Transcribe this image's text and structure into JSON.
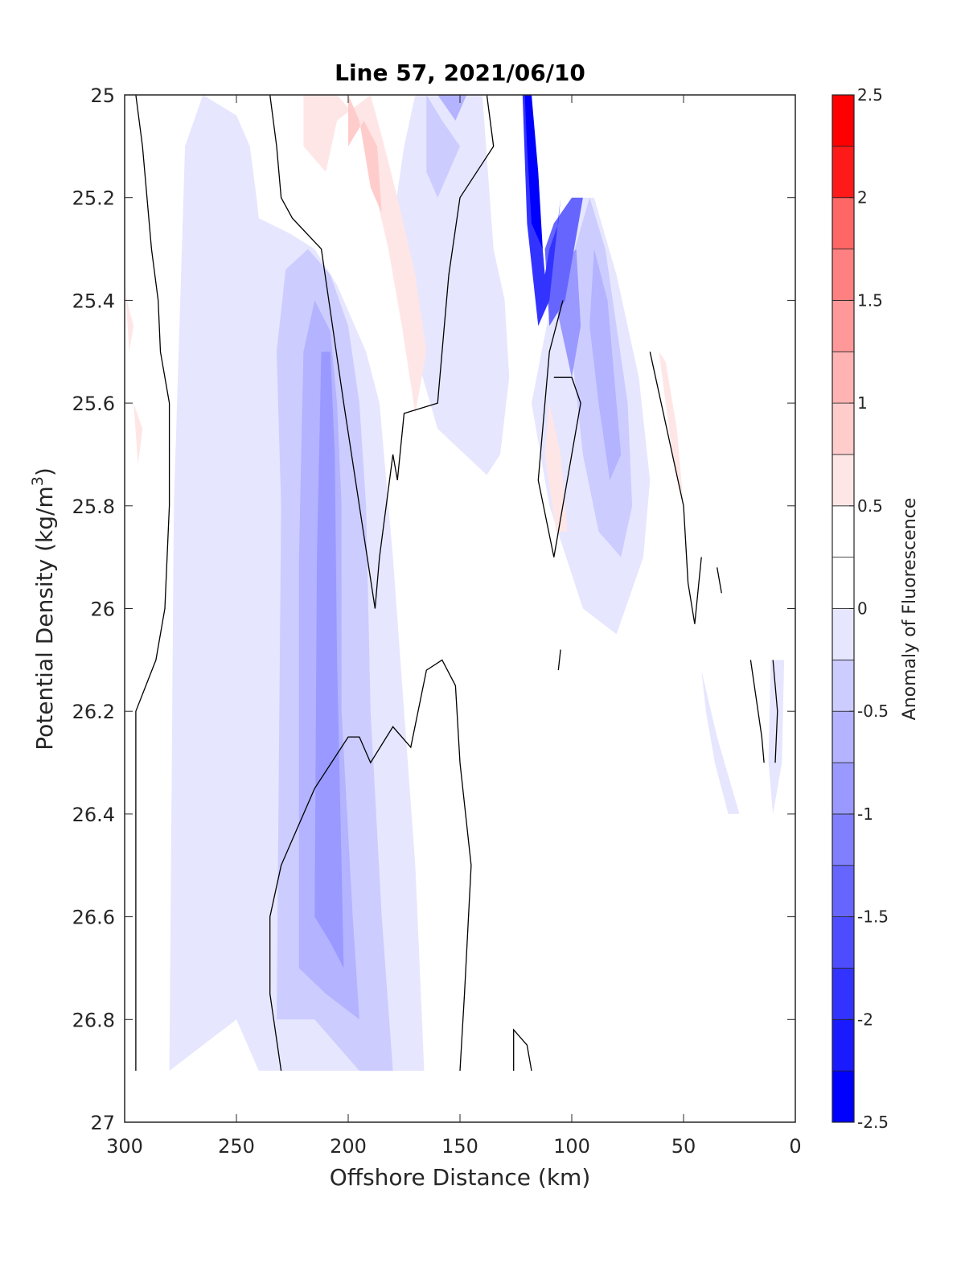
{
  "chart_data": {
    "type": "filled-contour",
    "title": "Line 57, 2021/06/10",
    "xlabel": "Offshore Distance (km)",
    "ylabel_main": "Potential Density (kg/m",
    "ylabel_sup": "3",
    "ylabel_tail": ")",
    "xlim": [
      300,
      0
    ],
    "ylim": [
      27,
      25
    ],
    "x_reversed": true,
    "y_reversed": true,
    "x_ticks": [
      300,
      250,
      200,
      150,
      100,
      50,
      0
    ],
    "x_tick_labels": [
      "300",
      "250",
      "200",
      "150",
      "100",
      "50",
      "0"
    ],
    "y_ticks": [
      25,
      25.2,
      25.4,
      25.6,
      25.8,
      26,
      26.2,
      26.4,
      26.6,
      26.8,
      27
    ],
    "y_tick_labels": [
      "25",
      "25.2",
      "25.4",
      "25.6",
      "25.8",
      "26",
      "26.2",
      "26.4",
      "26.6",
      "26.8",
      "27"
    ],
    "colorbar": {
      "label": "Anomaly of Fluorescence",
      "range": [
        -2.5,
        2.5
      ],
      "ticks": [
        -2.5,
        -2,
        -1.5,
        -1,
        -0.5,
        0,
        0.5,
        1,
        1.5,
        2,
        2.5
      ],
      "tick_labels": [
        "-2.5",
        "-2",
        "-1.5",
        "-1",
        "-0.5",
        "0",
        "0.5",
        "1",
        "1.5",
        "2",
        "2.5"
      ],
      "levels": [
        -2.5,
        -2.25,
        -2,
        -1.75,
        -1.5,
        -1.25,
        -1,
        -0.75,
        -0.5,
        -0.25,
        0.25,
        0.5,
        0.75,
        1,
        1.25,
        1.5,
        1.75,
        2,
        2.25,
        2.5
      ],
      "colors": [
        "#0000ff",
        "#1a1aff",
        "#3333ff",
        "#4d4dff",
        "#6666ff",
        "#8080ff",
        "#9999ff",
        "#b3b3ff",
        "#ccccff",
        "#e6e6ff",
        "#ffffff",
        "#ffe6e6",
        "#ffcccc",
        "#ffb3b3",
        "#ff9999",
        "#ff8080",
        "#ff6666",
        "#ff4d4d",
        "#ff3333",
        "#ff1a1a",
        "#ff0000"
      ]
    },
    "filled_regions": [
      {
        "level": -0.25,
        "color": "#e6e6ff",
        "polygon": [
          [
            280,
            26.9
          ],
          [
            278,
            25.8
          ],
          [
            273,
            25.1
          ],
          [
            265,
            25.0
          ],
          [
            250,
            25.04
          ],
          [
            244,
            25.1
          ],
          [
            241,
            25.2
          ],
          [
            240,
            25.24
          ],
          [
            226,
            25.27
          ],
          [
            215,
            25.3
          ],
          [
            205,
            25.37
          ],
          [
            197,
            25.45
          ],
          [
            192,
            25.5
          ],
          [
            186,
            25.6
          ],
          [
            180,
            25.9
          ],
          [
            175,
            26.2
          ],
          [
            170,
            26.5
          ],
          [
            166,
            26.9
          ],
          [
            240,
            26.9
          ],
          [
            250,
            26.8
          ]
        ]
      },
      {
        "level": -0.25,
        "color": "#e6e6ff",
        "polygon": [
          [
            130,
            25.0
          ],
          [
            140,
            25.0
          ],
          [
            135,
            25.3
          ],
          [
            130,
            25.4
          ],
          [
            128,
            25.55
          ],
          [
            132,
            25.7
          ],
          [
            138,
            25.74
          ],
          [
            160,
            25.65
          ],
          [
            170,
            25.5
          ],
          [
            180,
            25.25
          ],
          [
            175,
            25.1
          ],
          [
            170,
            25.0
          ]
        ]
      },
      {
        "level": -0.25,
        "color": "#e6e6ff",
        "polygon": [
          [
            100,
            25.2
          ],
          [
            90,
            25.2
          ],
          [
            80,
            25.35
          ],
          [
            70,
            25.55
          ],
          [
            65,
            25.75
          ],
          [
            68,
            25.9
          ],
          [
            80,
            26.05
          ],
          [
            95,
            26.0
          ],
          [
            110,
            25.8
          ],
          [
            118,
            25.6
          ]
        ]
      },
      {
        "level": -0.25,
        "color": "#e6e6ff",
        "polygon": [
          [
            42,
            26.12
          ],
          [
            35,
            26.25
          ],
          [
            25,
            26.4
          ],
          [
            30,
            26.4
          ],
          [
            36,
            26.3
          ],
          [
            40,
            26.2
          ]
        ]
      },
      {
        "level": -0.25,
        "color": "#e6e6ff",
        "polygon": [
          [
            11,
            26.1
          ],
          [
            5,
            26.1
          ],
          [
            6,
            26.3
          ],
          [
            10,
            26.4
          ],
          [
            12,
            26.3
          ]
        ]
      },
      {
        "level": -0.5,
        "color": "#ccccff",
        "polygon": [
          [
            232,
            26.8
          ],
          [
            230,
            25.8
          ],
          [
            232,
            25.5
          ],
          [
            228,
            25.34
          ],
          [
            218,
            25.3
          ],
          [
            208,
            25.35
          ],
          [
            200,
            25.45
          ],
          [
            195,
            25.6
          ],
          [
            192,
            25.8
          ],
          [
            190,
            26.2
          ],
          [
            185,
            26.6
          ],
          [
            180,
            26.9
          ],
          [
            195,
            26.9
          ],
          [
            215,
            26.8
          ]
        ]
      },
      {
        "level": -0.5,
        "color": "#ccccff",
        "polygon": [
          [
            165,
            25.0
          ],
          [
            158,
            25.05
          ],
          [
            150,
            25.1
          ],
          [
            155,
            25.15
          ],
          [
            160,
            25.2
          ],
          [
            165,
            25.15
          ]
        ]
      },
      {
        "level": -0.5,
        "color": "#ccccff",
        "polygon": [
          [
            92,
            25.2
          ],
          [
            85,
            25.3
          ],
          [
            80,
            25.45
          ],
          [
            75,
            25.6
          ],
          [
            73,
            25.8
          ],
          [
            78,
            25.9
          ],
          [
            88,
            25.85
          ],
          [
            95,
            25.7
          ],
          [
            100,
            25.5
          ],
          [
            102,
            25.35
          ]
        ]
      },
      {
        "level": -0.75,
        "color": "#b3b3ff",
        "polygon": [
          [
            222,
            26.7
          ],
          [
            222,
            25.9
          ],
          [
            220,
            25.5
          ],
          [
            215,
            25.4
          ],
          [
            208,
            25.46
          ],
          [
            205,
            25.6
          ],
          [
            203,
            25.8
          ],
          [
            203,
            26.2
          ],
          [
            198,
            26.6
          ],
          [
            195,
            26.8
          ],
          [
            210,
            26.75
          ]
        ]
      },
      {
        "level": -0.75,
        "color": "#b3b3ff",
        "polygon": [
          [
            160,
            25.0
          ],
          [
            152,
            25.05
          ],
          [
            147,
            25.0
          ]
        ]
      },
      {
        "level": -0.75,
        "color": "#b3b3ff",
        "polygon": [
          [
            90,
            25.3
          ],
          [
            84,
            25.4
          ],
          [
            80,
            25.6
          ],
          [
            78,
            25.7
          ],
          [
            83,
            25.75
          ],
          [
            88,
            25.6
          ],
          [
            92,
            25.45
          ]
        ]
      },
      {
        "level": -1.0,
        "color": "#9999ff",
        "polygon": [
          [
            215,
            26.6
          ],
          [
            214,
            25.9
          ],
          [
            212,
            25.5
          ],
          [
            208,
            25.5
          ],
          [
            206,
            25.7
          ],
          [
            205,
            26.1
          ],
          [
            203,
            26.5
          ],
          [
            202,
            26.7
          ],
          [
            208,
            26.65
          ]
        ]
      },
      {
        "level": -1.0,
        "color": "#9999ff",
        "polygon": [
          [
            110,
            25.35
          ],
          [
            105,
            25.45
          ],
          [
            100,
            25.55
          ],
          [
            96,
            25.45
          ],
          [
            98,
            25.3
          ]
        ]
      },
      {
        "level": -1.5,
        "color": "#6666ff",
        "polygon": [
          [
            100,
            25.2
          ],
          [
            95,
            25.2
          ],
          [
            103,
            25.4
          ],
          [
            110,
            25.45
          ],
          [
            112,
            25.3
          ],
          [
            108,
            25.25
          ]
        ]
      },
      {
        "level": -2.0,
        "color": "#3333ff",
        "polygon": [
          [
            122,
            25.0
          ],
          [
            118,
            25.0
          ],
          [
            115,
            25.2
          ],
          [
            112,
            25.35
          ],
          [
            110,
            25.3
          ],
          [
            106,
            25.25
          ],
          [
            105,
            25.2
          ],
          [
            110,
            25.4
          ],
          [
            115,
            25.45
          ],
          [
            120,
            25.25
          ]
        ]
      },
      {
        "level": -2.25,
        "color": "#0000ff",
        "polygon": [
          [
            121,
            25.0
          ],
          [
            118,
            25.0
          ],
          [
            115,
            25.15
          ],
          [
            113,
            25.3
          ],
          [
            118,
            25.25
          ],
          [
            120,
            25.1
          ]
        ]
      },
      {
        "level": 0.25,
        "color": "#ffe6e6",
        "polygon": [
          [
            220,
            25.0
          ],
          [
            205,
            25.0
          ],
          [
            195,
            25.05
          ],
          [
            190,
            25.15
          ],
          [
            182,
            25.3
          ],
          [
            176,
            25.45
          ],
          [
            170,
            25.62
          ],
          [
            165,
            25.5
          ],
          [
            170,
            25.35
          ],
          [
            178,
            25.2
          ],
          [
            185,
            25.08
          ],
          [
            190,
            25.0
          ],
          [
            205,
            25.05
          ],
          [
            210,
            25.15
          ],
          [
            220,
            25.1
          ]
        ]
      },
      {
        "level": 0.25,
        "color": "#ffe6e6",
        "polygon": [
          [
            110,
            25.6
          ],
          [
            105,
            25.7
          ],
          [
            102,
            25.85
          ],
          [
            107,
            25.85
          ],
          [
            112,
            25.7
          ]
        ]
      },
      {
        "level": 0.25,
        "color": "#ffe6e6",
        "polygon": [
          [
            61,
            25.5
          ],
          [
            55,
            25.7
          ],
          [
            50,
            25.8
          ],
          [
            53,
            25.65
          ],
          [
            58,
            25.52
          ]
        ]
      },
      {
        "level": 0.25,
        "color": "#ffe6e6",
        "polygon": [
          [
            300,
            25.35
          ],
          [
            298,
            25.5
          ],
          [
            296,
            25.45
          ],
          [
            299,
            25.4
          ]
        ]
      },
      {
        "level": 0.25,
        "color": "#ffe6e6",
        "polygon": [
          [
            296,
            25.6
          ],
          [
            294,
            25.72
          ],
          [
            292,
            25.65
          ]
        ]
      },
      {
        "level": 0.5,
        "color": "#ffcccc",
        "polygon": [
          [
            200,
            25.0
          ],
          [
            195,
            25.05
          ],
          [
            190,
            25.18
          ],
          [
            185,
            25.23
          ],
          [
            187,
            25.1
          ],
          [
            193,
            25.05
          ],
          [
            200,
            25.1
          ]
        ]
      }
    ],
    "zero_contours": [
      [
        [
          295,
          25.0
        ],
        [
          292,
          25.1
        ],
        [
          290,
          25.2
        ],
        [
          288,
          25.3
        ],
        [
          285,
          25.4
        ],
        [
          284,
          25.5
        ],
        [
          280,
          25.6
        ],
        [
          280,
          25.8
        ],
        [
          282,
          26.0
        ],
        [
          286,
          26.1
        ],
        [
          295,
          26.2
        ],
        [
          295,
          26.9
        ]
      ],
      [
        [
          235,
          25.0
        ],
        [
          232,
          25.1
        ],
        [
          230,
          25.2
        ],
        [
          225,
          25.24
        ],
        [
          212,
          25.3
        ],
        [
          207,
          25.45
        ],
        [
          202,
          25.6
        ],
        [
          195,
          25.8
        ],
        [
          188,
          26.0
        ],
        [
          186,
          25.9
        ],
        [
          180,
          25.7
        ],
        [
          178,
          25.75
        ],
        [
          175,
          25.62
        ],
        [
          160,
          25.6
        ],
        [
          157,
          25.45
        ],
        [
          155,
          25.35
        ],
        [
          150,
          25.2
        ],
        [
          135,
          25.1
        ],
        [
          138,
          25.0
        ]
      ],
      [
        [
          104,
          25.4
        ],
        [
          110,
          25.5
        ],
        [
          115,
          25.75
        ],
        [
          108,
          25.9
        ],
        [
          100,
          25.7
        ],
        [
          96,
          25.6
        ],
        [
          100,
          25.55
        ],
        [
          108,
          25.55
        ]
      ],
      [
        [
          65,
          25.5
        ],
        [
          60,
          25.6
        ],
        [
          50,
          25.8
        ],
        [
          48,
          25.95
        ],
        [
          45,
          26.03
        ],
        [
          42,
          25.9
        ]
      ],
      [
        [
          35,
          25.92
        ],
        [
          33,
          25.97
        ]
      ],
      [
        [
          150,
          26.9
        ],
        [
          148,
          26.75
        ],
        [
          145,
          26.5
        ],
        [
          150,
          26.3
        ],
        [
          152,
          26.15
        ],
        [
          158,
          26.1
        ],
        [
          165,
          26.12
        ],
        [
          172,
          26.27
        ],
        [
          180,
          26.23
        ],
        [
          190,
          26.3
        ],
        [
          195,
          26.25
        ],
        [
          200,
          26.25
        ],
        [
          215,
          26.35
        ],
        [
          225,
          26.45
        ],
        [
          230,
          26.5
        ],
        [
          235,
          26.6
        ],
        [
          235,
          26.75
        ],
        [
          230,
          26.9
        ]
      ],
      [
        [
          118,
          26.9
        ],
        [
          120,
          26.85
        ],
        [
          126,
          26.82
        ],
        [
          126,
          26.9
        ]
      ],
      [
        [
          105,
          26.08
        ],
        [
          106,
          26.12
        ]
      ],
      [
        [
          20,
          26.1
        ],
        [
          15,
          26.25
        ],
        [
          14,
          26.3
        ]
      ],
      [
        [
          10,
          26.1
        ],
        [
          8,
          26.2
        ],
        [
          9,
          26.3
        ]
      ]
    ]
  }
}
